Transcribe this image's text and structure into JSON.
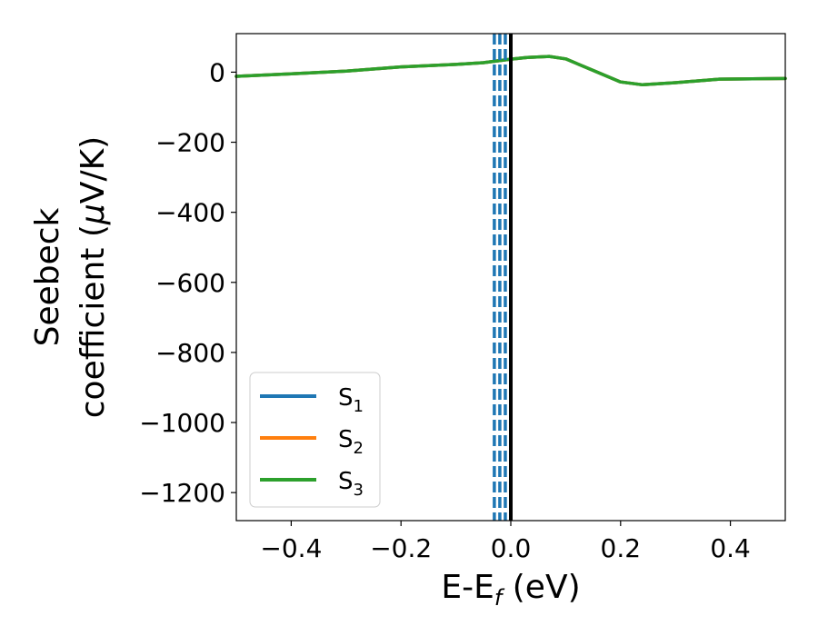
{
  "chart_data": {
    "type": "line",
    "xlabel_main": "E-E",
    "xlabel_sub": "f",
    "xlabel_unit": " (eV)",
    "ylabel_line1": "Seebeck",
    "ylabel_line2_pre": "coefficient  (",
    "ylabel_mu": "μ",
    "ylabel_line2_post": "V/K)",
    "xlim": [
      -0.5,
      0.5
    ],
    "ylim": [
      -1280,
      110
    ],
    "xticks": [
      -0.4,
      -0.2,
      0.0,
      0.2,
      0.4
    ],
    "xtick_labels": [
      "−0.4",
      "−0.2",
      "0.0",
      "0.2",
      "0.4"
    ],
    "yticks": [
      0,
      -200,
      -400,
      -600,
      -800,
      -1000,
      -1200
    ],
    "ytick_labels": [
      "0",
      "−200",
      "−400",
      "−600",
      "−800",
      "−1000",
      "−1200"
    ],
    "vlines": [
      {
        "x": -0.03,
        "style": "dashed",
        "color": "#1f77b4"
      },
      {
        "x": -0.02,
        "style": "dashed",
        "color": "#1f77b4"
      },
      {
        "x": -0.01,
        "style": "dashed",
        "color": "#1f77b4"
      },
      {
        "x": 0.0,
        "style": "solid",
        "color": "#000000"
      }
    ],
    "legend_position": "lower-left",
    "series": [
      {
        "name": "S",
        "sub": "1",
        "color": "#1f77b4",
        "x": [
          -0.5,
          -0.4,
          -0.3,
          -0.2,
          -0.1,
          -0.05,
          0.0,
          0.03,
          0.07,
          0.1,
          0.15,
          0.2,
          0.24,
          0.3,
          0.38,
          0.5
        ],
        "y": [
          -12,
          -5,
          3,
          15,
          22,
          27,
          37,
          42,
          45,
          38,
          5,
          -28,
          -36,
          -30,
          -20,
          -18
        ]
      },
      {
        "name": "S",
        "sub": "2",
        "color": "#ff7f0e",
        "x": [
          -0.5,
          -0.4,
          -0.3,
          -0.2,
          -0.1,
          -0.05,
          0.0,
          0.03,
          0.07,
          0.1,
          0.15,
          0.2,
          0.24,
          0.3,
          0.38,
          0.5
        ],
        "y": [
          -12,
          -5,
          3,
          15,
          22,
          27,
          37,
          42,
          45,
          38,
          5,
          -28,
          -36,
          -30,
          -20,
          -18
        ]
      },
      {
        "name": "S",
        "sub": "3",
        "color": "#2ca02c",
        "x": [
          -0.5,
          -0.4,
          -0.3,
          -0.2,
          -0.1,
          -0.05,
          0.0,
          0.03,
          0.07,
          0.1,
          0.15,
          0.2,
          0.24,
          0.3,
          0.38,
          0.5
        ],
        "y": [
          -12,
          -5,
          3,
          15,
          22,
          27,
          37,
          42,
          45,
          38,
          5,
          -28,
          -36,
          -30,
          -20,
          -18
        ]
      }
    ]
  }
}
